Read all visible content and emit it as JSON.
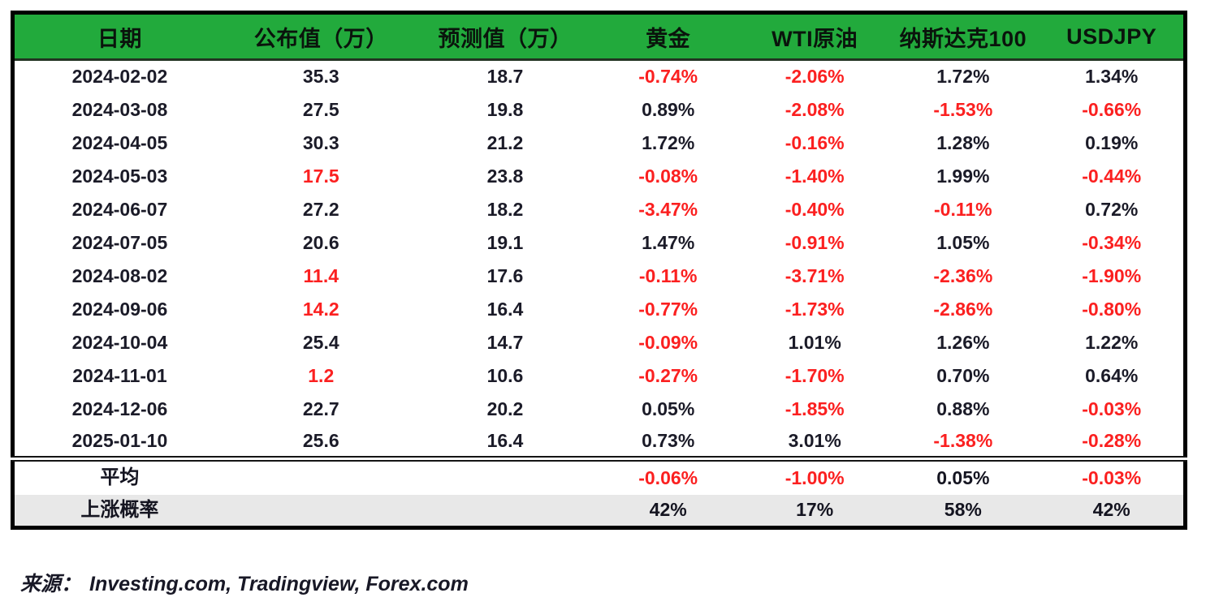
{
  "colors": {
    "header_green": "#22aa3c",
    "negative_red": "#fb2020",
    "text_dark": "#1b1b28",
    "probability_row_bg": "#e8e8e8"
  },
  "table": {
    "headers": [
      {
        "key": "date",
        "label": "日期"
      },
      {
        "key": "published",
        "label": "公布值（万）"
      },
      {
        "key": "forecast",
        "label": "预测值（万）"
      },
      {
        "key": "gold",
        "label": "黄金"
      },
      {
        "key": "wti",
        "label": "WTI原油"
      },
      {
        "key": "nasdaq",
        "label": "纳斯达克100"
      },
      {
        "key": "usdjpy",
        "label": "USDJPY"
      }
    ],
    "rows": [
      [
        {
          "t": "2024-02-02",
          "red": false
        },
        {
          "t": "35.3",
          "red": false
        },
        {
          "t": "18.7",
          "red": false
        },
        {
          "t": "-0.74%",
          "red": true
        },
        {
          "t": "-2.06%",
          "red": true
        },
        {
          "t": "1.72%",
          "red": false
        },
        {
          "t": "1.34%",
          "red": false
        }
      ],
      [
        {
          "t": "2024-03-08",
          "red": false
        },
        {
          "t": "27.5",
          "red": false
        },
        {
          "t": "19.8",
          "red": false
        },
        {
          "t": "0.89%",
          "red": false
        },
        {
          "t": "-2.08%",
          "red": true
        },
        {
          "t": "-1.53%",
          "red": true
        },
        {
          "t": "-0.66%",
          "red": true
        }
      ],
      [
        {
          "t": "2024-04-05",
          "red": false
        },
        {
          "t": "30.3",
          "red": false
        },
        {
          "t": "21.2",
          "red": false
        },
        {
          "t": "1.72%",
          "red": false
        },
        {
          "t": "-0.16%",
          "red": true
        },
        {
          "t": "1.28%",
          "red": false
        },
        {
          "t": "0.19%",
          "red": false
        }
      ],
      [
        {
          "t": "2024-05-03",
          "red": false
        },
        {
          "t": "17.5",
          "red": true
        },
        {
          "t": "23.8",
          "red": false
        },
        {
          "t": "-0.08%",
          "red": true
        },
        {
          "t": "-1.40%",
          "red": true
        },
        {
          "t": "1.99%",
          "red": false
        },
        {
          "t": "-0.44%",
          "red": true
        }
      ],
      [
        {
          "t": "2024-06-07",
          "red": false
        },
        {
          "t": "27.2",
          "red": false
        },
        {
          "t": "18.2",
          "red": false
        },
        {
          "t": "-3.47%",
          "red": true
        },
        {
          "t": "-0.40%",
          "red": true
        },
        {
          "t": "-0.11%",
          "red": true
        },
        {
          "t": "0.72%",
          "red": false
        }
      ],
      [
        {
          "t": "2024-07-05",
          "red": false
        },
        {
          "t": "20.6",
          "red": false
        },
        {
          "t": "19.1",
          "red": false
        },
        {
          "t": "1.47%",
          "red": false
        },
        {
          "t": "-0.91%",
          "red": true
        },
        {
          "t": "1.05%",
          "red": false
        },
        {
          "t": "-0.34%",
          "red": true
        }
      ],
      [
        {
          "t": "2024-08-02",
          "red": false
        },
        {
          "t": "11.4",
          "red": true
        },
        {
          "t": "17.6",
          "red": false
        },
        {
          "t": "-0.11%",
          "red": true
        },
        {
          "t": "-3.71%",
          "red": true
        },
        {
          "t": "-2.36%",
          "red": true
        },
        {
          "t": "-1.90%",
          "red": true
        }
      ],
      [
        {
          "t": "2024-09-06",
          "red": false
        },
        {
          "t": "14.2",
          "red": true
        },
        {
          "t": "16.4",
          "red": false
        },
        {
          "t": "-0.77%",
          "red": true
        },
        {
          "t": "-1.73%",
          "red": true
        },
        {
          "t": "-2.86%",
          "red": true
        },
        {
          "t": "-0.80%",
          "red": true
        }
      ],
      [
        {
          "t": "2024-10-04",
          "red": false
        },
        {
          "t": "25.4",
          "red": false
        },
        {
          "t": "14.7",
          "red": false
        },
        {
          "t": "-0.09%",
          "red": true
        },
        {
          "t": "1.01%",
          "red": false
        },
        {
          "t": "1.26%",
          "red": false
        },
        {
          "t": "1.22%",
          "red": false
        }
      ],
      [
        {
          "t": "2024-11-01",
          "red": false
        },
        {
          "t": "1.2",
          "red": true
        },
        {
          "t": "10.6",
          "red": false
        },
        {
          "t": "-0.27%",
          "red": true
        },
        {
          "t": "-1.70%",
          "red": true
        },
        {
          "t": "0.70%",
          "red": false
        },
        {
          "t": "0.64%",
          "red": false
        }
      ],
      [
        {
          "t": "2024-12-06",
          "red": false
        },
        {
          "t": "22.7",
          "red": false
        },
        {
          "t": "20.2",
          "red": false
        },
        {
          "t": "0.05%",
          "red": false
        },
        {
          "t": "-1.85%",
          "red": true
        },
        {
          "t": "0.88%",
          "red": false
        },
        {
          "t": "-0.03%",
          "red": true
        }
      ],
      [
        {
          "t": "2025-01-10",
          "red": false
        },
        {
          "t": "25.6",
          "red": false
        },
        {
          "t": "16.4",
          "red": false
        },
        {
          "t": "0.73%",
          "red": false
        },
        {
          "t": "3.01%",
          "red": false
        },
        {
          "t": "-1.38%",
          "red": true
        },
        {
          "t": "-0.28%",
          "red": true
        }
      ]
    ],
    "average_row": {
      "label": "平均",
      "cells": [
        {
          "t": "",
          "red": false
        },
        {
          "t": "",
          "red": false
        },
        {
          "t": "-0.06%",
          "red": true
        },
        {
          "t": "-1.00%",
          "red": true
        },
        {
          "t": "0.05%",
          "red": false
        },
        {
          "t": "-0.03%",
          "red": true
        }
      ]
    },
    "probability_row": {
      "label": "上涨概率",
      "cells": [
        {
          "t": "",
          "red": false
        },
        {
          "t": "",
          "red": false
        },
        {
          "t": "42%",
          "red": false
        },
        {
          "t": "17%",
          "red": false
        },
        {
          "t": "58%",
          "red": false
        },
        {
          "t": "42%",
          "red": false
        }
      ]
    }
  },
  "footer": {
    "source_label": "来源：",
    "sources": "Investing.com, Tradingview, Forex.com"
  }
}
